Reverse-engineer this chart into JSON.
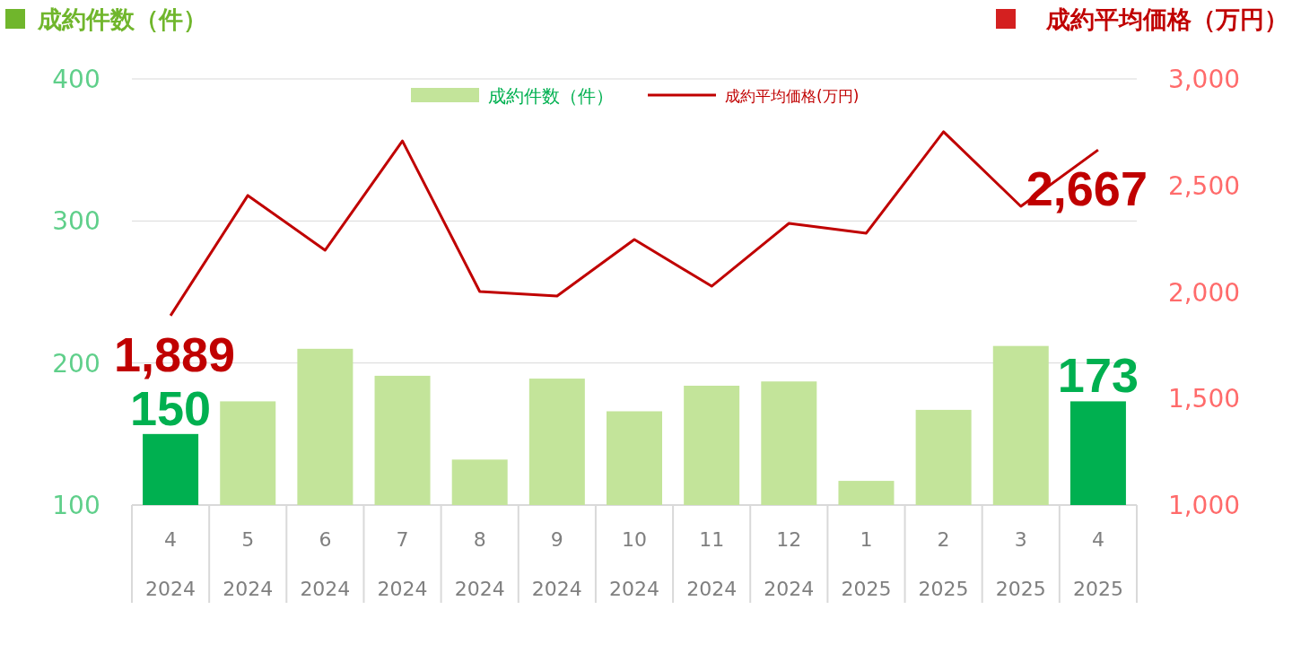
{
  "chart_data": {
    "type": "bar",
    "ylabel": "成約件数（件）",
    "y2label": "成約平均価格（万円）",
    "categories": [
      "4\n2024",
      "5\n2024",
      "6\n2024",
      "7\n2024",
      "8\n2024",
      "9\n2024",
      "10\n2024",
      "11\n2024",
      "12\n2024",
      "1\n2025",
      "2\n2025",
      "3\n2025",
      "4\n2025"
    ],
    "series": [
      {
        "name": "成約件数（件）",
        "color": "#c3e49a",
        "colors": [
          "#00b050",
          "#c3e49a",
          "#c3e49a",
          "#c3e49a",
          "#c3e49a",
          "#c3e49a",
          "#c3e49a",
          "#c3e49a",
          "#c3e49a",
          "#c3e49a",
          "#c3e49a",
          "#c3e49a",
          "#00b050"
        ],
        "values": [
          150,
          173,
          210,
          191,
          132,
          189,
          166,
          184,
          187,
          117,
          167,
          212,
          173
        ],
        "value_labels": [
          "150",
          null,
          null,
          null,
          null,
          null,
          null,
          null,
          null,
          null,
          null,
          null,
          "173"
        ]
      },
      {
        "name": "成約平均価格(万円)",
        "type": "line",
        "axis": "y2",
        "color": "#c00000",
        "values": [
          1889,
          2453,
          2196,
          2709,
          2002,
          1981,
          2246,
          2027,
          2322,
          2276,
          2752,
          2402,
          2667
        ],
        "value_labels": [
          "1,889",
          null,
          null,
          null,
          null,
          null,
          null,
          null,
          null,
          null,
          null,
          null,
          "2,667"
        ]
      }
    ],
    "ylim": [
      100,
      400
    ],
    "yticks": [
      100,
      200,
      300,
      400
    ],
    "y2lim": [
      1000,
      3000
    ],
    "y2ticks": [
      {
        "value": 1000,
        "label": "1,000"
      },
      {
        "value": 1500,
        "label": "1,500"
      },
      {
        "value": 2000,
        "label": "2,000"
      },
      {
        "value": 2500,
        "label": "2,500"
      },
      {
        "value": 3000,
        "label": "3,000"
      }
    ],
    "grid": "y",
    "legend": "top",
    "marker": "none",
    "line_style": "solid"
  }
}
